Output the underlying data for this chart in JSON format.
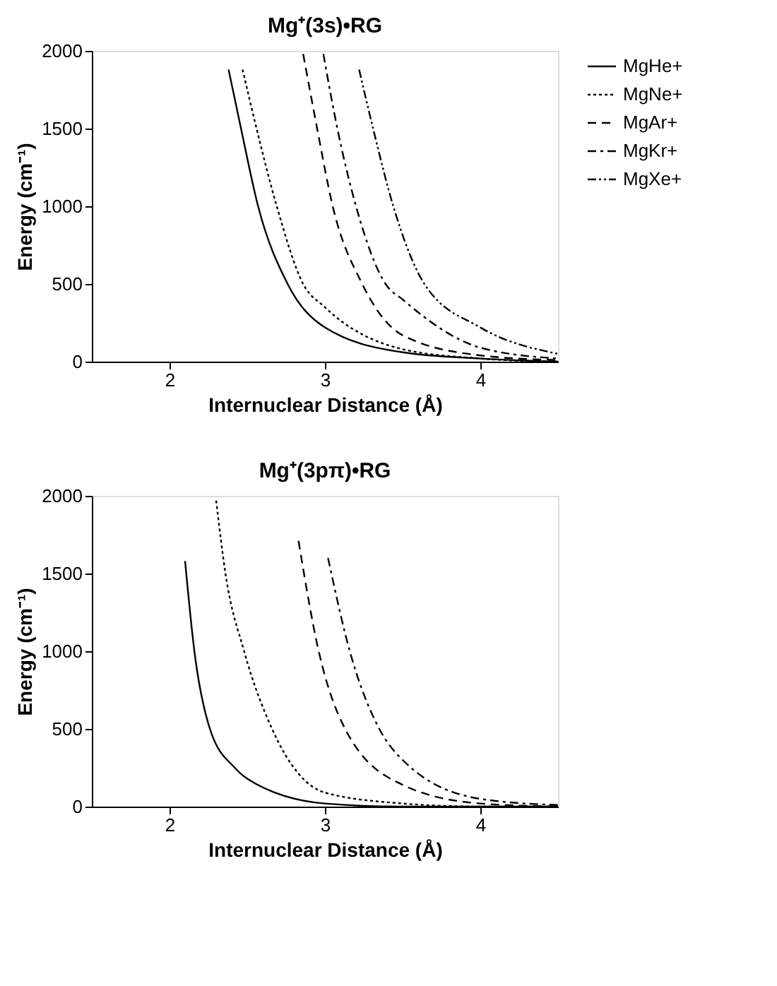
{
  "chart_data": [
    {
      "type": "line",
      "title": "Mg⁺(3s)•RG",
      "xlabel": "Internuclear Distance (Å)",
      "ylabel": "Energy (cm⁻¹)",
      "xlim": [
        1.5,
        4.5
      ],
      "ylim": [
        0,
        2000
      ],
      "xticks": [
        2,
        3,
        4
      ],
      "yticks": [
        0,
        500,
        1000,
        1500,
        2000
      ],
      "legend": "right",
      "grid": false,
      "marker": "none",
      "series": [
        {
          "name": "MgHe+",
          "color": "#000000",
          "line_style": "solid",
          "x": [
            2.38,
            2.46,
            2.57,
            2.76,
            3.0,
            3.5,
            4.0,
            4.5
          ],
          "values": [
            1880,
            1500,
            1000,
            500,
            220,
            60,
            20,
            0
          ]
        },
        {
          "name": "MgNe+",
          "color": "#000000",
          "line_style": "dotted",
          "x": [
            2.47,
            2.56,
            2.69,
            2.86,
            3.0,
            3.5,
            4.0,
            4.5
          ],
          "values": [
            1880,
            1500,
            1000,
            500,
            350,
            80,
            20,
            0
          ]
        },
        {
          "name": "MgAr+",
          "color": "#000000",
          "line_style": "dashed",
          "x": [
            2.86,
            2.95,
            3.05,
            3.24,
            3.5,
            4.0,
            4.5
          ],
          "values": [
            1980,
            1500,
            1000,
            500,
            170,
            40,
            10
          ]
        },
        {
          "name": "MgKr+",
          "color": "#000000",
          "line_style": "dashdot",
          "x": [
            2.99,
            3.08,
            3.2,
            3.39,
            3.5,
            4.0,
            4.5
          ],
          "values": [
            1980,
            1500,
            1000,
            500,
            400,
            90,
            20
          ]
        },
        {
          "name": "MgXe+",
          "color": "#000000",
          "line_style": "dashdotdot",
          "x": [
            3.22,
            3.31,
            3.44,
            3.64,
            4.0,
            4.5
          ],
          "values": [
            1880,
            1500,
            1000,
            500,
            220,
            50
          ]
        }
      ]
    },
    {
      "type": "line",
      "title": "Mg⁺(3pπ)•RG",
      "xlabel": "Internuclear Distance (Å)",
      "ylabel": "Energy (cm⁻¹)",
      "xlim": [
        1.5,
        4.5
      ],
      "ylim": [
        0,
        2000
      ],
      "xticks": [
        2,
        3,
        4
      ],
      "yticks": [
        0,
        500,
        1000,
        1500,
        2000
      ],
      "legend": "right",
      "grid": false,
      "marker": "none",
      "series": [
        {
          "name": "MgHe+",
          "color": "#000000",
          "line_style": "solid",
          "x": [
            2.1,
            2.16,
            2.26,
            2.42,
            2.5,
            3.0,
            3.5,
            4.0,
            4.5
          ],
          "values": [
            1580,
            1000,
            500,
            250,
            180,
            20,
            0,
            0,
            0
          ]
        },
        {
          "name": "MgNe+",
          "color": "#000000",
          "line_style": "dotted",
          "x": [
            2.3,
            2.36,
            2.48,
            2.66,
            3.0,
            3.5,
            4.0,
            4.5
          ],
          "values": [
            1970,
            1500,
            1000,
            500,
            90,
            20,
            0,
            0
          ]
        },
        {
          "name": "MgAr+",
          "color": "#000000",
          "line_style": "dashed",
          "x": [
            2.83,
            2.96,
            3.13,
            3.5,
            4.0,
            4.5
          ],
          "values": [
            1710,
            1000,
            500,
            140,
            20,
            0
          ]
        },
        {
          "name": "MgKr+",
          "color": "#000000",
          "line_style": "dashdot",
          "x": [
            3.02,
            3.16,
            3.35,
            3.5,
            4.0,
            4.5
          ],
          "values": [
            1600,
            1000,
            500,
            300,
            50,
            10
          ]
        }
      ]
    }
  ]
}
